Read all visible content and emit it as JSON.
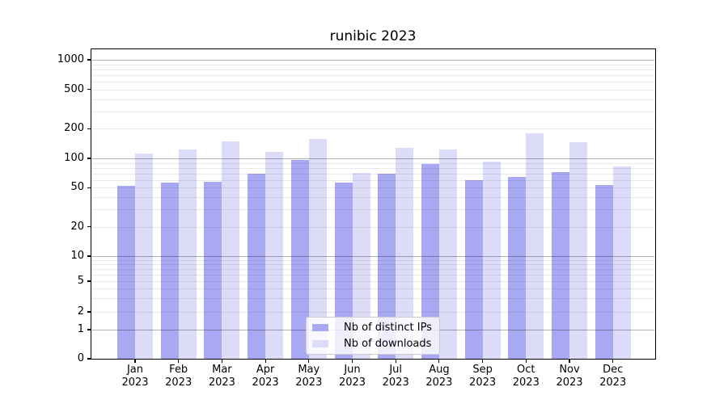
{
  "title": "runibic 2023",
  "chart_data": {
    "type": "bar",
    "categories": [
      "Jan 2023",
      "Feb 2023",
      "Mar 2023",
      "Apr 2023",
      "May 2023",
      "Jun 2023",
      "Jul 2023",
      "Aug 2023",
      "Sep 2023",
      "Oct 2023",
      "Nov 2023",
      "Dec 2023"
    ],
    "series": [
      {
        "name": "Nb of distinct IPs",
        "color": "#a9a9f3",
        "values": [
          52,
          57,
          58,
          69,
          96,
          56,
          70,
          88,
          60,
          65,
          73,
          53
        ]
      },
      {
        "name": "Nb of downloads",
        "color": "#dcdcf9",
        "values": [
          112,
          123,
          150,
          116,
          158,
          71,
          127,
          122,
          93,
          178,
          146,
          83
        ]
      }
    ],
    "y_axis": {
      "scale": "log-like (log decades above 10, compressed 0-10 region, 0 at baseline)",
      "tick_labels": [
        "0",
        "1",
        "2",
        "5",
        "10",
        "20",
        "50",
        "100",
        "200",
        "500",
        "1000"
      ],
      "tick_values": [
        0,
        1,
        2,
        5,
        10,
        20,
        50,
        100,
        200,
        500,
        1000
      ],
      "ylim": [
        0,
        1330
      ]
    },
    "x_axis": {
      "tick_label_lines": 2
    },
    "grid": {
      "on": true,
      "major_values": [
        1,
        10,
        100,
        1000
      ],
      "minor_values": [
        2,
        3,
        4,
        5,
        6,
        7,
        8,
        9,
        20,
        30,
        40,
        50,
        60,
        70,
        80,
        90,
        200,
        300,
        400,
        500,
        600,
        700,
        800,
        900
      ]
    },
    "legend": {
      "position": "lower center",
      "entries": [
        "Nb of distinct IPs",
        "Nb of downloads"
      ]
    }
  },
  "colors": {
    "background": "#ffffff",
    "bar_distinct_ips": "#a9a9f3",
    "bar_downloads": "#dcdcf9",
    "spine": "#000000",
    "major_grid": "#b2b2b2",
    "minor_grid": "#e9e9e9"
  }
}
